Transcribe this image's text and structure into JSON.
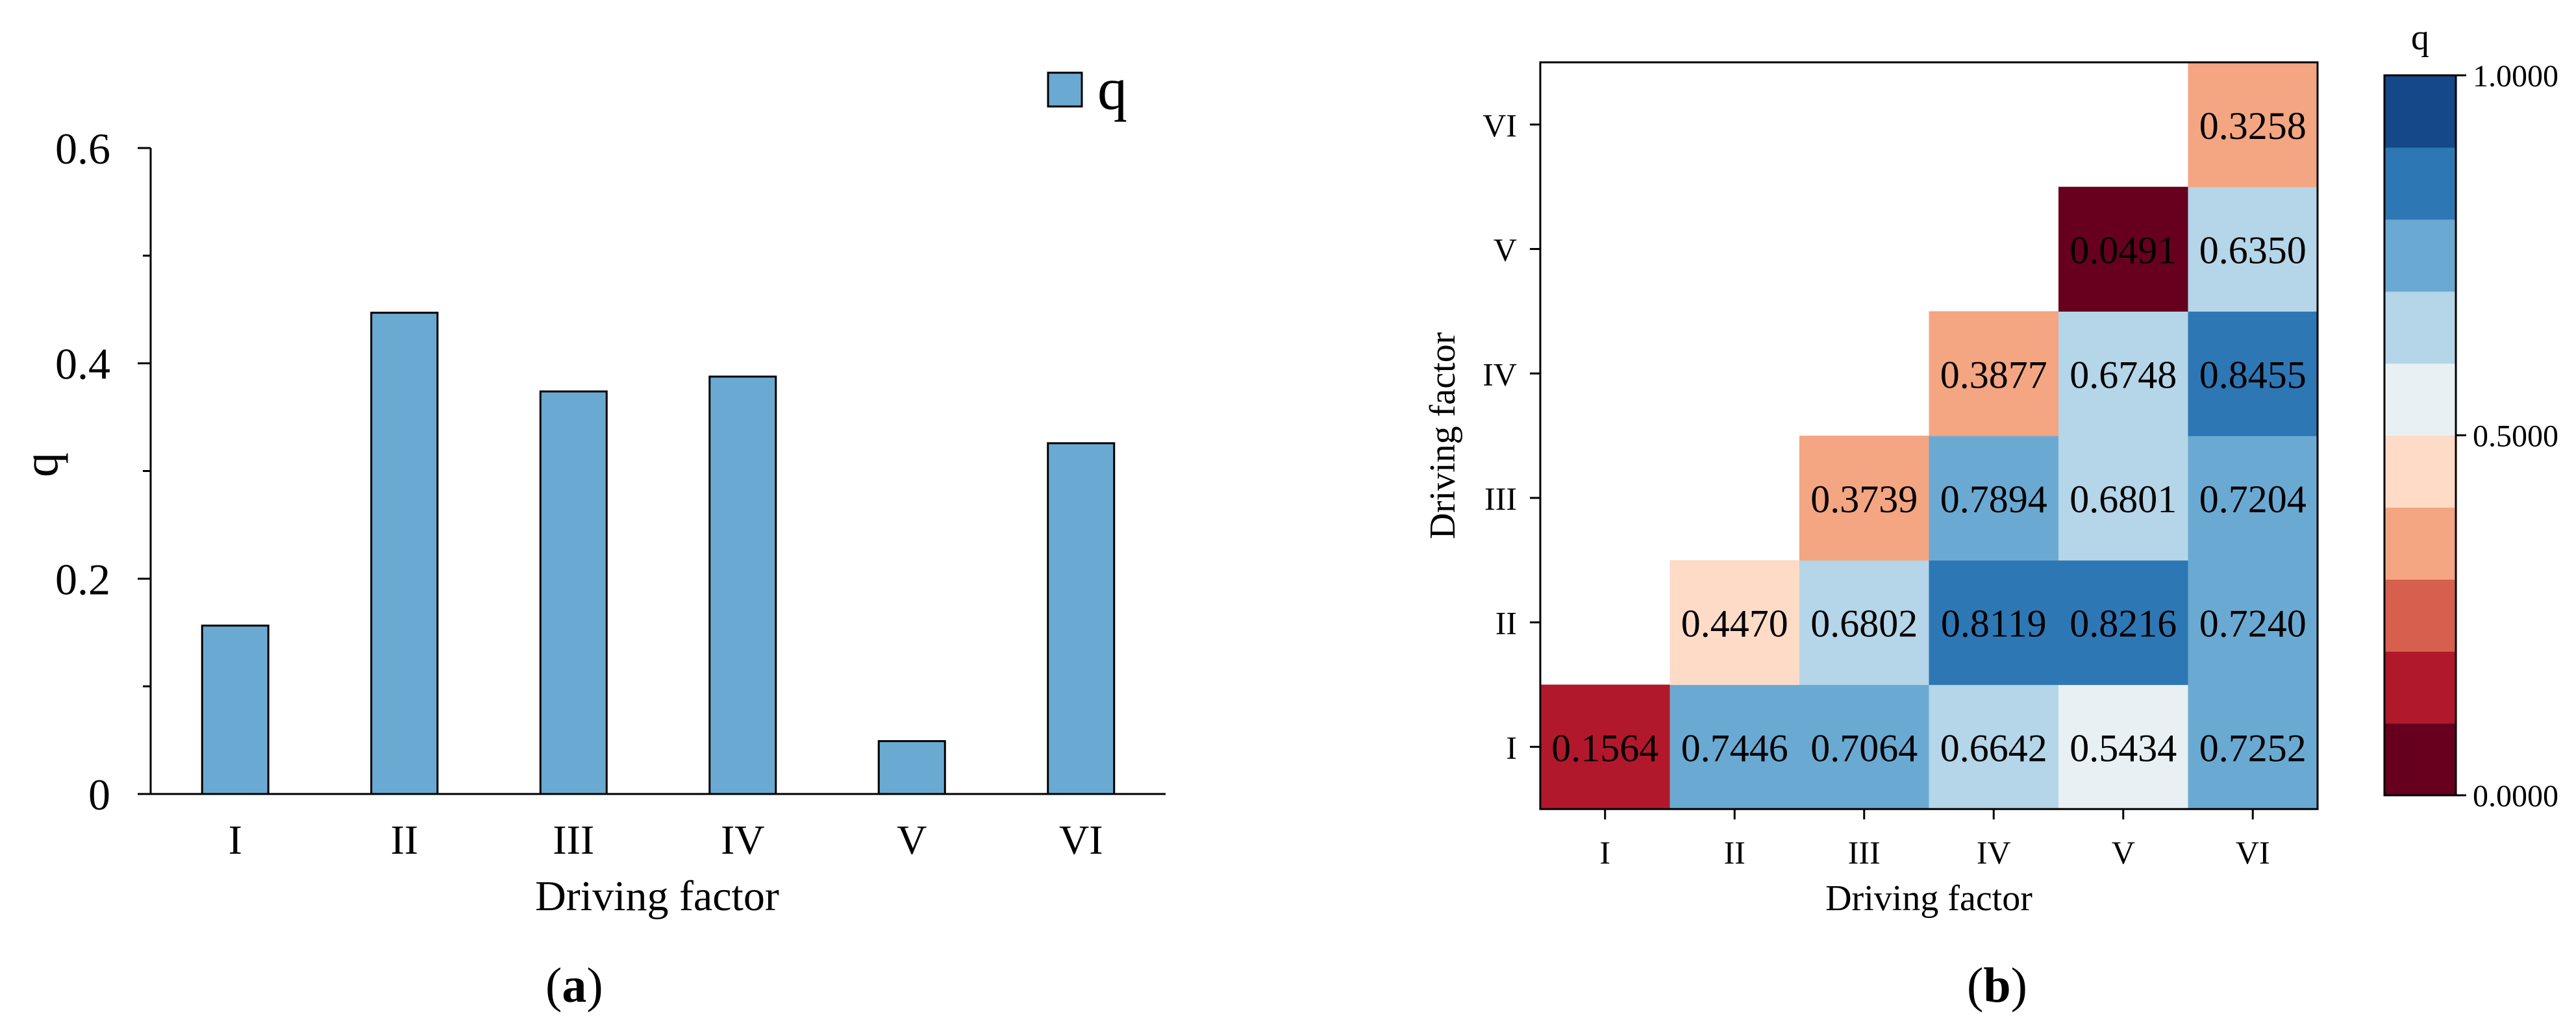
{
  "colors": {
    "bar_fill": "#6aaad2",
    "axis": "#000000",
    "legend_text": "#555555",
    "colorbar_bins": [
      "#67001f",
      "#b2182b",
      "#d6604d",
      "#f4a582",
      "#fddbc7",
      "#e8f0f4",
      "#b5d5e8",
      "#6aaad2",
      "#2e77b5",
      "#144888"
    ]
  },
  "chart_data": [
    {
      "type": "bar",
      "categories": [
        "I",
        "II",
        "III",
        "IV",
        "V",
        "VI"
      ],
      "values": [
        0.1564,
        0.447,
        0.3739,
        0.3877,
        0.0491,
        0.3258
      ],
      "series": [
        {
          "name": "q",
          "values": [
            0.1564,
            0.447,
            0.3739,
            0.3877,
            0.0491,
            0.3258
          ]
        }
      ],
      "xlabel": "Driving factor",
      "ylabel": "q",
      "ylim": [
        0,
        0.6
      ],
      "yticks": [
        0,
        0.2,
        0.4,
        0.6
      ],
      "ytick_labels": [
        "0",
        "0.2",
        "0.4",
        "0.6"
      ],
      "legend": {
        "label": "q",
        "placement": "top-right"
      },
      "caption_letter": "a"
    },
    {
      "type": "heatmap",
      "x_categories": [
        "I",
        "II",
        "III",
        "IV",
        "V",
        "VI"
      ],
      "y_categories": [
        "I",
        "II",
        "III",
        "IV",
        "V",
        "VI"
      ],
      "matrix": [
        [
          0.1564,
          0.7446,
          0.7064,
          0.6642,
          0.5434,
          0.7252
        ],
        [
          null,
          0.447,
          0.6802,
          0.8119,
          0.8216,
          0.724
        ],
        [
          null,
          null,
          0.3739,
          0.7894,
          0.6801,
          0.7204
        ],
        [
          null,
          null,
          null,
          0.3877,
          0.6748,
          0.8455
        ],
        [
          null,
          null,
          null,
          null,
          0.0491,
          0.635
        ],
        [
          null,
          null,
          null,
          null,
          null,
          0.3258
        ]
      ],
      "cell_labels": [
        [
          "0.1564",
          "0.7446",
          "0.7064",
          "0.6642",
          "0.5434",
          "0.7252"
        ],
        [
          "",
          "0.4470",
          "0.6802",
          "0.8119",
          "0.8216",
          "0.7240"
        ],
        [
          "",
          "",
          "0.3739",
          "0.7894",
          "0.6801",
          "0.7204"
        ],
        [
          "",
          "",
          "",
          "0.3877",
          "0.6748",
          "0.8455"
        ],
        [
          "",
          "",
          "",
          "",
          "0.0491",
          "0.6350"
        ],
        [
          "",
          "",
          "",
          "",
          "",
          "0.3258"
        ]
      ],
      "xlabel": "Driving factor",
      "ylabel": "Driving factor",
      "colorbar": {
        "title": "q",
        "range": [
          0,
          1
        ],
        "tick_values": [
          0,
          0.5,
          1
        ],
        "tick_labels": [
          "0.0000",
          "0.5000",
          "1.0000"
        ],
        "bins": 10
      },
      "caption_letter": "b"
    }
  ]
}
